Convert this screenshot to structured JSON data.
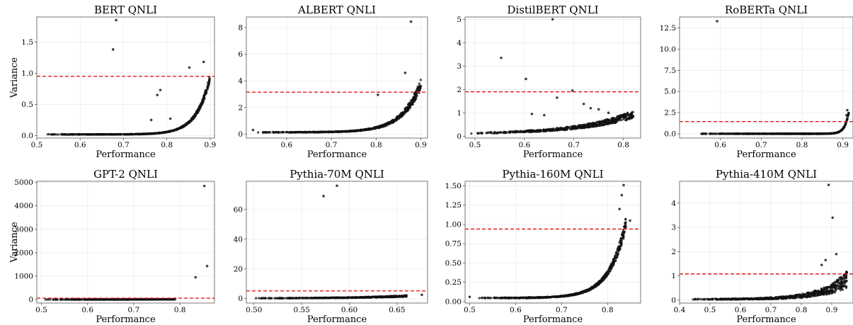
{
  "chart_data": [
    {
      "type": "scatter",
      "title": "BERT QNLI",
      "xlabel": "Performance",
      "ylabel": "Variance",
      "xlim": [
        0.5,
        0.91
      ],
      "ylim": [
        -0.04,
        1.9
      ],
      "xticks": [
        0.5,
        0.6,
        0.7,
        0.8,
        0.9
      ],
      "xtick_labels": [
        "0.5",
        "0.6",
        "0.7",
        "0.8",
        "0.9"
      ],
      "yticks": [
        0,
        0.5,
        1.0,
        1.5
      ],
      "ytick_labels": [
        "0.0",
        "0.5",
        "1.0",
        "1.5"
      ],
      "threshold": 0.95,
      "grid": true,
      "curve": {
        "x0": 0.52,
        "x1": 0.9,
        "y_start": 0.02,
        "y_end": 1.0,
        "sharpness": 12
      },
      "n_points": 650,
      "spread": 0.12,
      "outliers": [
        [
          0.683,
          1.85
        ],
        [
          0.676,
          1.38
        ],
        [
          0.778,
          0.65
        ],
        [
          0.785,
          0.73
        ],
        [
          0.764,
          0.25
        ],
        [
          0.852,
          1.09
        ],
        [
          0.885,
          1.18
        ],
        [
          0.808,
          0.27
        ]
      ]
    },
    {
      "type": "scatter",
      "title": "ALBERT QNLI",
      "xlabel": "Performance",
      "ylabel": "",
      "xlim": [
        0.51,
        0.915
      ],
      "ylim": [
        -0.3,
        8.8
      ],
      "xticks": [
        0.6,
        0.7,
        0.8,
        0.9
      ],
      "xtick_labels": [
        "0.6",
        "0.7",
        "0.8",
        "0.9"
      ],
      "yticks": [
        0,
        2,
        4,
        6,
        8
      ],
      "ytick_labels": [
        "0",
        "2",
        "4",
        "6",
        "8"
      ],
      "threshold": 3.15,
      "grid": true,
      "curve": {
        "x0": 0.52,
        "x1": 0.9,
        "y_start": 0.15,
        "y_end": 4.2,
        "sharpness": 9
      },
      "n_points": 600,
      "spread": 0.2,
      "outliers": [
        [
          0.878,
          8.45
        ],
        [
          0.865,
          4.6
        ],
        [
          0.804,
          2.95
        ],
        [
          0.525,
          0.3
        ]
      ]
    },
    {
      "type": "scatter",
      "title": "DistilBERT QNLI",
      "xlabel": "Performance",
      "ylabel": "",
      "xlim": [
        0.48,
        0.835
      ],
      "ylim": [
        -0.08,
        5.1
      ],
      "xticks": [
        0.5,
        0.6,
        0.7,
        0.8
      ],
      "xtick_labels": [
        "0.5",
        "0.6",
        "0.7",
        "0.8"
      ],
      "yticks": [
        0,
        1,
        2,
        3,
        4,
        5
      ],
      "ytick_labels": [
        "0",
        "1",
        "2",
        "3",
        "4",
        "5"
      ],
      "threshold": 1.9,
      "grid": true,
      "curve": {
        "x0": 0.49,
        "x1": 0.82,
        "y_start": 0.15,
        "y_end": 1.1,
        "sharpness": 3
      },
      "n_points": 550,
      "spread": 0.3,
      "outliers": [
        [
          0.657,
          5.0
        ],
        [
          0.553,
          3.35
        ],
        [
          0.603,
          2.45
        ],
        [
          0.666,
          1.65
        ],
        [
          0.72,
          1.38
        ],
        [
          0.697,
          1.95
        ],
        [
          0.734,
          1.2
        ],
        [
          0.75,
          1.15
        ],
        [
          0.77,
          1.0
        ],
        [
          0.64,
          0.9
        ],
        [
          0.615,
          0.95
        ]
      ]
    },
    {
      "type": "scatter",
      "title": "RoBERTa QNLI",
      "xlabel": "Performance",
      "ylabel": "",
      "xlim": [
        0.5,
        0.925
      ],
      "ylim": [
        -0.5,
        13.8
      ],
      "xticks": [
        0.6,
        0.7,
        0.8,
        0.9
      ],
      "xtick_labels": [
        "0.6",
        "0.7",
        "0.8",
        "0.9"
      ],
      "yticks": [
        0,
        2.5,
        5,
        7.5,
        10,
        12.5
      ],
      "ytick_labels": [
        "0.0",
        "2.5",
        "5.0",
        "7.5",
        "10.0",
        "12.5"
      ],
      "threshold": 1.45,
      "grid": true,
      "curve": {
        "x0": 0.52,
        "x1": 0.915,
        "y_start": 0.01,
        "y_end": 2.8,
        "sharpness": 40
      },
      "n_points": 600,
      "spread": 0.1,
      "outliers": [
        [
          0.592,
          13.3
        ],
        [
          0.911,
          2.8
        ],
        [
          0.909,
          2.2
        ]
      ]
    },
    {
      "type": "scatter",
      "title": "GPT-2  QNLI",
      "xlabel": "Performance",
      "ylabel": "Variance",
      "xlim": [
        0.49,
        0.875
      ],
      "ylim": [
        -150,
        5050
      ],
      "xticks": [
        0.5,
        0.6,
        0.7,
        0.8
      ],
      "xtick_labels": [
        "0.5",
        "0.6",
        "0.7",
        "0.8"
      ],
      "yticks": [
        0,
        1000,
        2000,
        3000,
        4000,
        5000
      ],
      "ytick_labels": [
        "0",
        "1000",
        "2000",
        "3000",
        "4000",
        "5000"
      ],
      "threshold": 60,
      "grid": true,
      "curve": {
        "x0": 0.5,
        "x1": 0.79,
        "y_start": 2,
        "y_end": 12,
        "sharpness": 3
      },
      "n_points": 450,
      "spread": 0.4,
      "outliers": [
        [
          0.853,
          4850
        ],
        [
          0.859,
          1430
        ],
        [
          0.834,
          950
        ],
        [
          0.79,
          35
        ]
      ]
    },
    {
      "type": "scatter",
      "title": "Pythia-70M QNLI",
      "xlabel": "Performance",
      "ylabel": "",
      "xlim": [
        0.492,
        0.682
      ],
      "ylim": [
        -3,
        79
      ],
      "xticks": [
        0.5,
        0.55,
        0.6,
        0.65
      ],
      "xtick_labels": [
        "0.50",
        "0.55",
        "0.60",
        "0.65"
      ],
      "yticks": [
        0,
        20,
        40,
        60
      ],
      "ytick_labels": [
        "0",
        "20",
        "40",
        "60"
      ],
      "threshold": 5.2,
      "grid": true,
      "curve": {
        "x0": 0.5,
        "x1": 0.66,
        "y_start": 0.3,
        "y_end": 2.2,
        "sharpness": 3
      },
      "n_points": 450,
      "spread": 0.4,
      "outliers": [
        [
          0.587,
          76
        ],
        [
          0.573,
          69
        ],
        [
          0.676,
          2.5
        ]
      ]
    },
    {
      "type": "scatter",
      "title": "Pythia-160M QNLI",
      "xlabel": "Performance",
      "ylabel": "",
      "xlim": [
        0.49,
        0.872
      ],
      "ylim": [
        -0.02,
        1.56
      ],
      "xticks": [
        0.5,
        0.6,
        0.7,
        0.8
      ],
      "xtick_labels": [
        "0.5",
        "0.6",
        "0.7",
        "0.8"
      ],
      "yticks": [
        0,
        0.25,
        0.5,
        0.75,
        1.0,
        1.25,
        1.5
      ],
      "ytick_labels": [
        "0.00",
        "0.25",
        "0.50",
        "0.75",
        "1.00",
        "1.25",
        "1.50"
      ],
      "threshold": 0.94,
      "grid": true,
      "curve": {
        "x0": 0.51,
        "x1": 0.84,
        "y_start": 0.05,
        "y_end": 1.1,
        "sharpness": 9
      },
      "n_points": 650,
      "spread": 0.15,
      "outliers": [
        [
          0.835,
          1.51
        ],
        [
          0.831,
          1.38
        ],
        [
          0.826,
          1.2
        ],
        [
          0.849,
          1.05
        ],
        [
          0.5,
          0.06
        ]
      ]
    },
    {
      "type": "scatter",
      "title": "Pythia-410M QNLI",
      "xlabel": "Performance",
      "ylabel": "",
      "xlim": [
        0.4,
        0.97
      ],
      "ylim": [
        -0.12,
        4.9
      ],
      "xticks": [
        0.4,
        0.5,
        0.6,
        0.7,
        0.8,
        0.9
      ],
      "xtick_labels": [
        "0.4",
        "0.5",
        "0.6",
        "0.7",
        "0.8",
        "0.9"
      ],
      "yticks": [
        0,
        1,
        2,
        3,
        4
      ],
      "ytick_labels": [
        "0",
        "1",
        "2",
        "3",
        "4"
      ],
      "threshold": 1.08,
      "grid": true,
      "curve": {
        "x0": 0.43,
        "x1": 0.95,
        "y_start": 0.05,
        "y_end": 1.2,
        "sharpness": 6
      },
      "n_points": 650,
      "spread": 0.6,
      "outliers": [
        [
          0.89,
          4.75
        ],
        [
          0.903,
          3.4
        ],
        [
          0.88,
          1.65
        ],
        [
          0.867,
          1.45
        ],
        [
          0.915,
          1.9
        ]
      ]
    }
  ]
}
